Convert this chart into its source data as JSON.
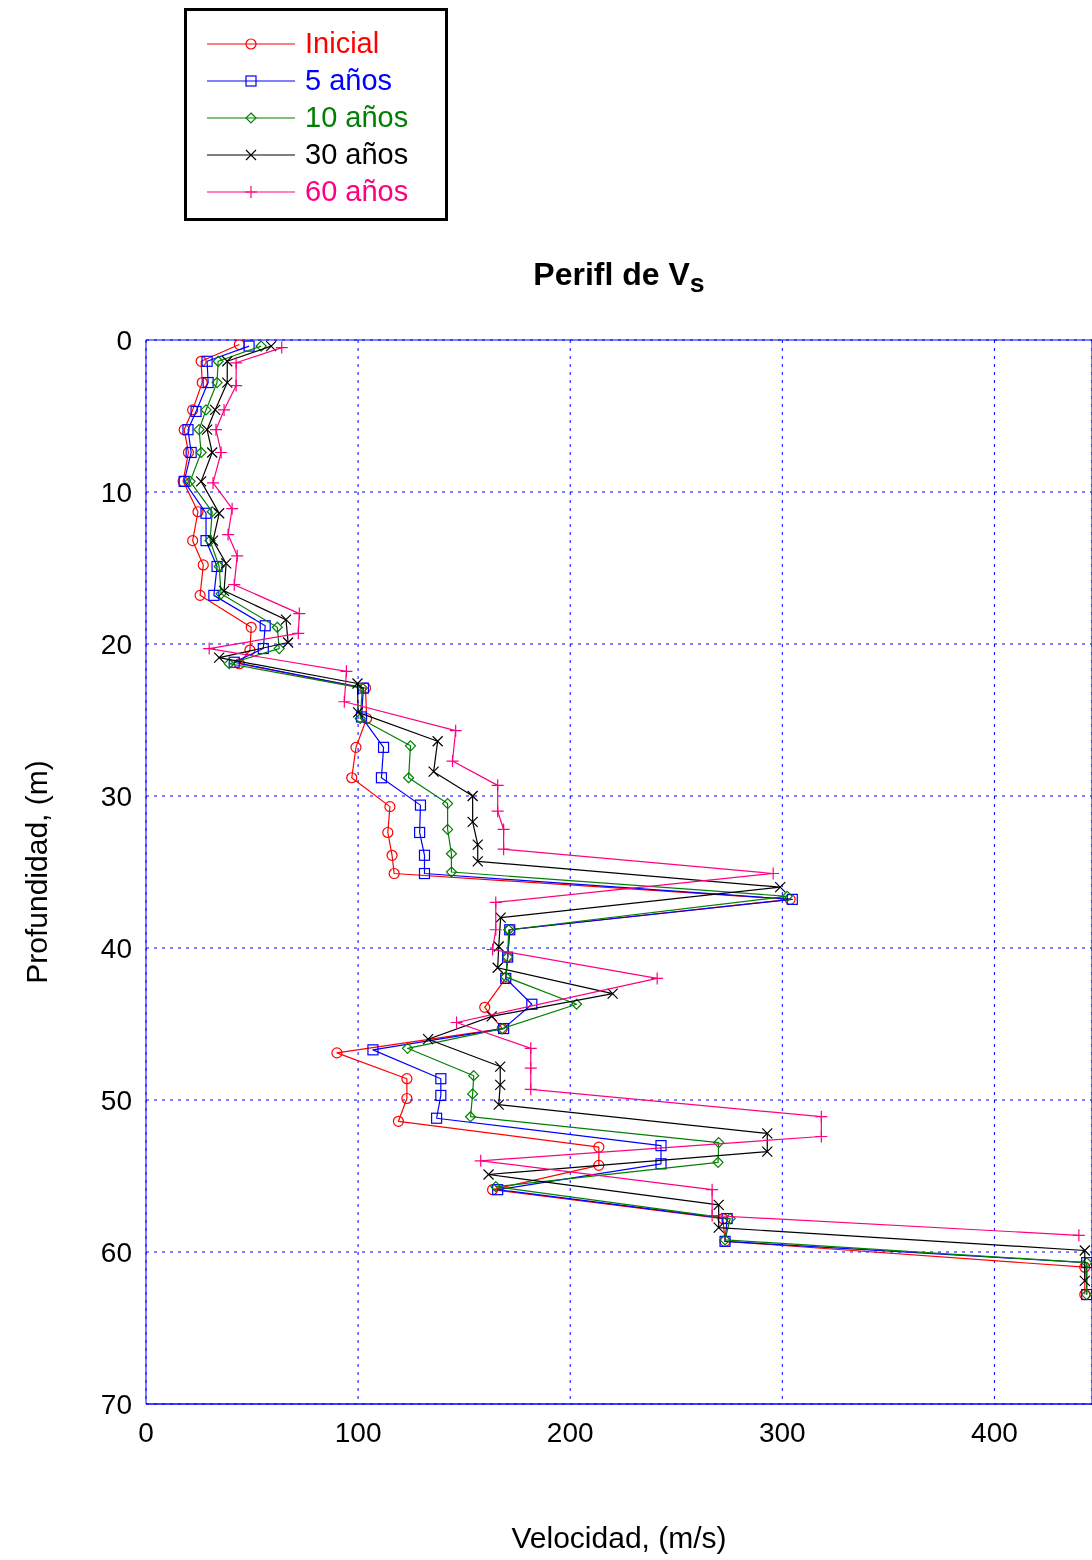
{
  "chart_data": {
    "type": "line",
    "title": "Perifl de V$_{s}$",
    "xlabel": "Velocidad, (m/s)",
    "ylabel": "Profundidad, (m)",
    "xlim": [
      0,
      446
    ],
    "xticks": [
      0,
      100,
      200,
      300,
      400
    ],
    "ylim": [
      70,
      0
    ],
    "yticks": [
      0,
      10,
      20,
      30,
      40,
      50,
      60,
      70
    ],
    "grid": true,
    "legend": "top left",
    "line_style": "solid",
    "series": [
      {
        "name": "Inicial",
        "color": "#ff0000",
        "marker": "circle",
        "x": [
          44,
          26,
          26.5,
          22,
          18,
          20,
          17.5,
          24.5,
          22,
          27,
          25.5,
          49.6,
          49,
          44,
          103.5,
          104,
          99,
          97,
          115,
          114,
          116,
          117,
          303.7,
          171.5,
          170.5,
          169.6,
          159.7,
          168,
          90,
          123,
          123,
          119,
          213.5,
          213.5,
          163.4,
          272,
          273,
          442.6,
          442.6
        ],
        "values": [
          0.3,
          1.4,
          2.8,
          4.6,
          5.9,
          7.4,
          9.3,
          11.3,
          13.2,
          14.8,
          16.8,
          18.9,
          20.4,
          21.3,
          22.9,
          24.9,
          26.8,
          28.8,
          30.7,
          32.4,
          33.9,
          35.1,
          36.8,
          38.8,
          40.6,
          42,
          43.9,
          45.3,
          46.9,
          48.6,
          49.9,
          51.4,
          53.1,
          54.3,
          55.9,
          57.8,
          59.3,
          61,
          62.8
        ]
      },
      {
        "name": "5 años",
        "color": "#0000ff",
        "marker": "square",
        "x": [
          48.6,
          28.8,
          29.3,
          23.6,
          19.8,
          21.3,
          18,
          28.3,
          28.3,
          33.5,
          32,
          56.2,
          55.3,
          41.6,
          102.5,
          101.6,
          112,
          111,
          129.4,
          129,
          131.3,
          131.3,
          304.7,
          171.5,
          170.5,
          169.6,
          181.9,
          168.6,
          107,
          139,
          139,
          137,
          242.8,
          242.8,
          165.8,
          274,
          273,
          443.5,
          443.5
        ],
        "values": [
          0.4,
          1.4,
          2.8,
          4.7,
          5.9,
          7.4,
          9.3,
          11.4,
          13.2,
          14.9,
          16.8,
          18.8,
          20.3,
          21.2,
          22.9,
          24.8,
          26.8,
          28.8,
          30.6,
          32.4,
          33.9,
          35.1,
          36.8,
          38.8,
          40.6,
          42,
          43.7,
          45.3,
          46.7,
          48.6,
          49.7,
          51.2,
          53,
          54.2,
          55.9,
          57.8,
          59.3,
          60.7,
          62.8
        ]
      },
      {
        "name": "10 años",
        "color": "#007f00",
        "marker": "diamond",
        "x": [
          54.3,
          34,
          33.5,
          28.3,
          25,
          26,
          20.8,
          31.2,
          30.2,
          34.5,
          35.4,
          61.9,
          62.8,
          39.2,
          102,
          101,
          124.7,
          123.8,
          142.2,
          142.2,
          144,
          144,
          302.3,
          171,
          170.5,
          169.6,
          203,
          168,
          123.3,
          154.5,
          154,
          153,
          270,
          269.7,
          164.9,
          275.4,
          273,
          443.5,
          443.5
        ],
        "values": [
          0.4,
          1.4,
          2.8,
          4.6,
          5.9,
          7.4,
          9.3,
          11.3,
          13.2,
          14.9,
          16.7,
          18.9,
          20.3,
          21.3,
          22.9,
          24.9,
          26.7,
          28.8,
          30.5,
          32.2,
          33.8,
          35,
          36.6,
          38.8,
          40.6,
          41.9,
          43.7,
          45.3,
          46.6,
          48.4,
          49.6,
          51.1,
          52.8,
          54.1,
          55.7,
          57.8,
          59.2,
          60.7,
          62.8
        ]
      },
      {
        "name": "30 años",
        "color": "#000000",
        "marker": "x",
        "x": [
          59,
          38.3,
          38.3,
          32.6,
          28.8,
          31.2,
          26,
          34.5,
          31.6,
          37.8,
          36.8,
          66,
          67,
          34.5,
          99.7,
          100,
          137.5,
          135.6,
          154,
          154,
          156.4,
          156.4,
          299,
          167.2,
          166.3,
          165.8,
          220,
          163,
          133,
          167,
          167,
          166.3,
          292.9,
          292.9,
          161.5,
          270,
          270,
          442.6,
          442.6
        ],
        "values": [
          0.4,
          1.4,
          2.8,
          4.6,
          5.9,
          7.4,
          9.3,
          11.4,
          13.2,
          14.7,
          16.5,
          18.4,
          19.9,
          20.9,
          22.6,
          24.5,
          26.4,
          28.4,
          30,
          31.7,
          33.2,
          34.3,
          36,
          38,
          39.9,
          41.3,
          43,
          44.5,
          46,
          47.8,
          49,
          50.3,
          52.2,
          53.4,
          54.9,
          56.9,
          58.4,
          59.9,
          61.9
        ]
      },
      {
        "name": "60 años",
        "color": "#ff0080",
        "marker": "cross",
        "x": [
          64,
          42.5,
          42.5,
          36.8,
          33,
          35.4,
          31.6,
          40.6,
          38.7,
          43,
          41.6,
          72.3,
          71.8,
          29.8,
          94.5,
          93.5,
          146,
          144.5,
          165.8,
          165.8,
          168.6,
          168.6,
          295.7,
          164.9,
          164.9,
          163.4,
          241,
          146.4,
          181.4,
          181.4,
          181.4,
          318.4,
          318.4,
          157.8,
          266.9,
          266.9,
          439.8
        ],
        "values": [
          0.5,
          1.5,
          3,
          4.6,
          5.9,
          7.4,
          9.4,
          11.1,
          12.8,
          14.2,
          16.1,
          18,
          19.3,
          20.3,
          21.8,
          23.8,
          25.7,
          27.7,
          29.3,
          31,
          32.2,
          33.5,
          35.1,
          37,
          38.8,
          40.1,
          42,
          44.9,
          46.6,
          47.9,
          49.3,
          51.1,
          52.4,
          54,
          55.9,
          57.6,
          58.9
        ]
      }
    ]
  }
}
